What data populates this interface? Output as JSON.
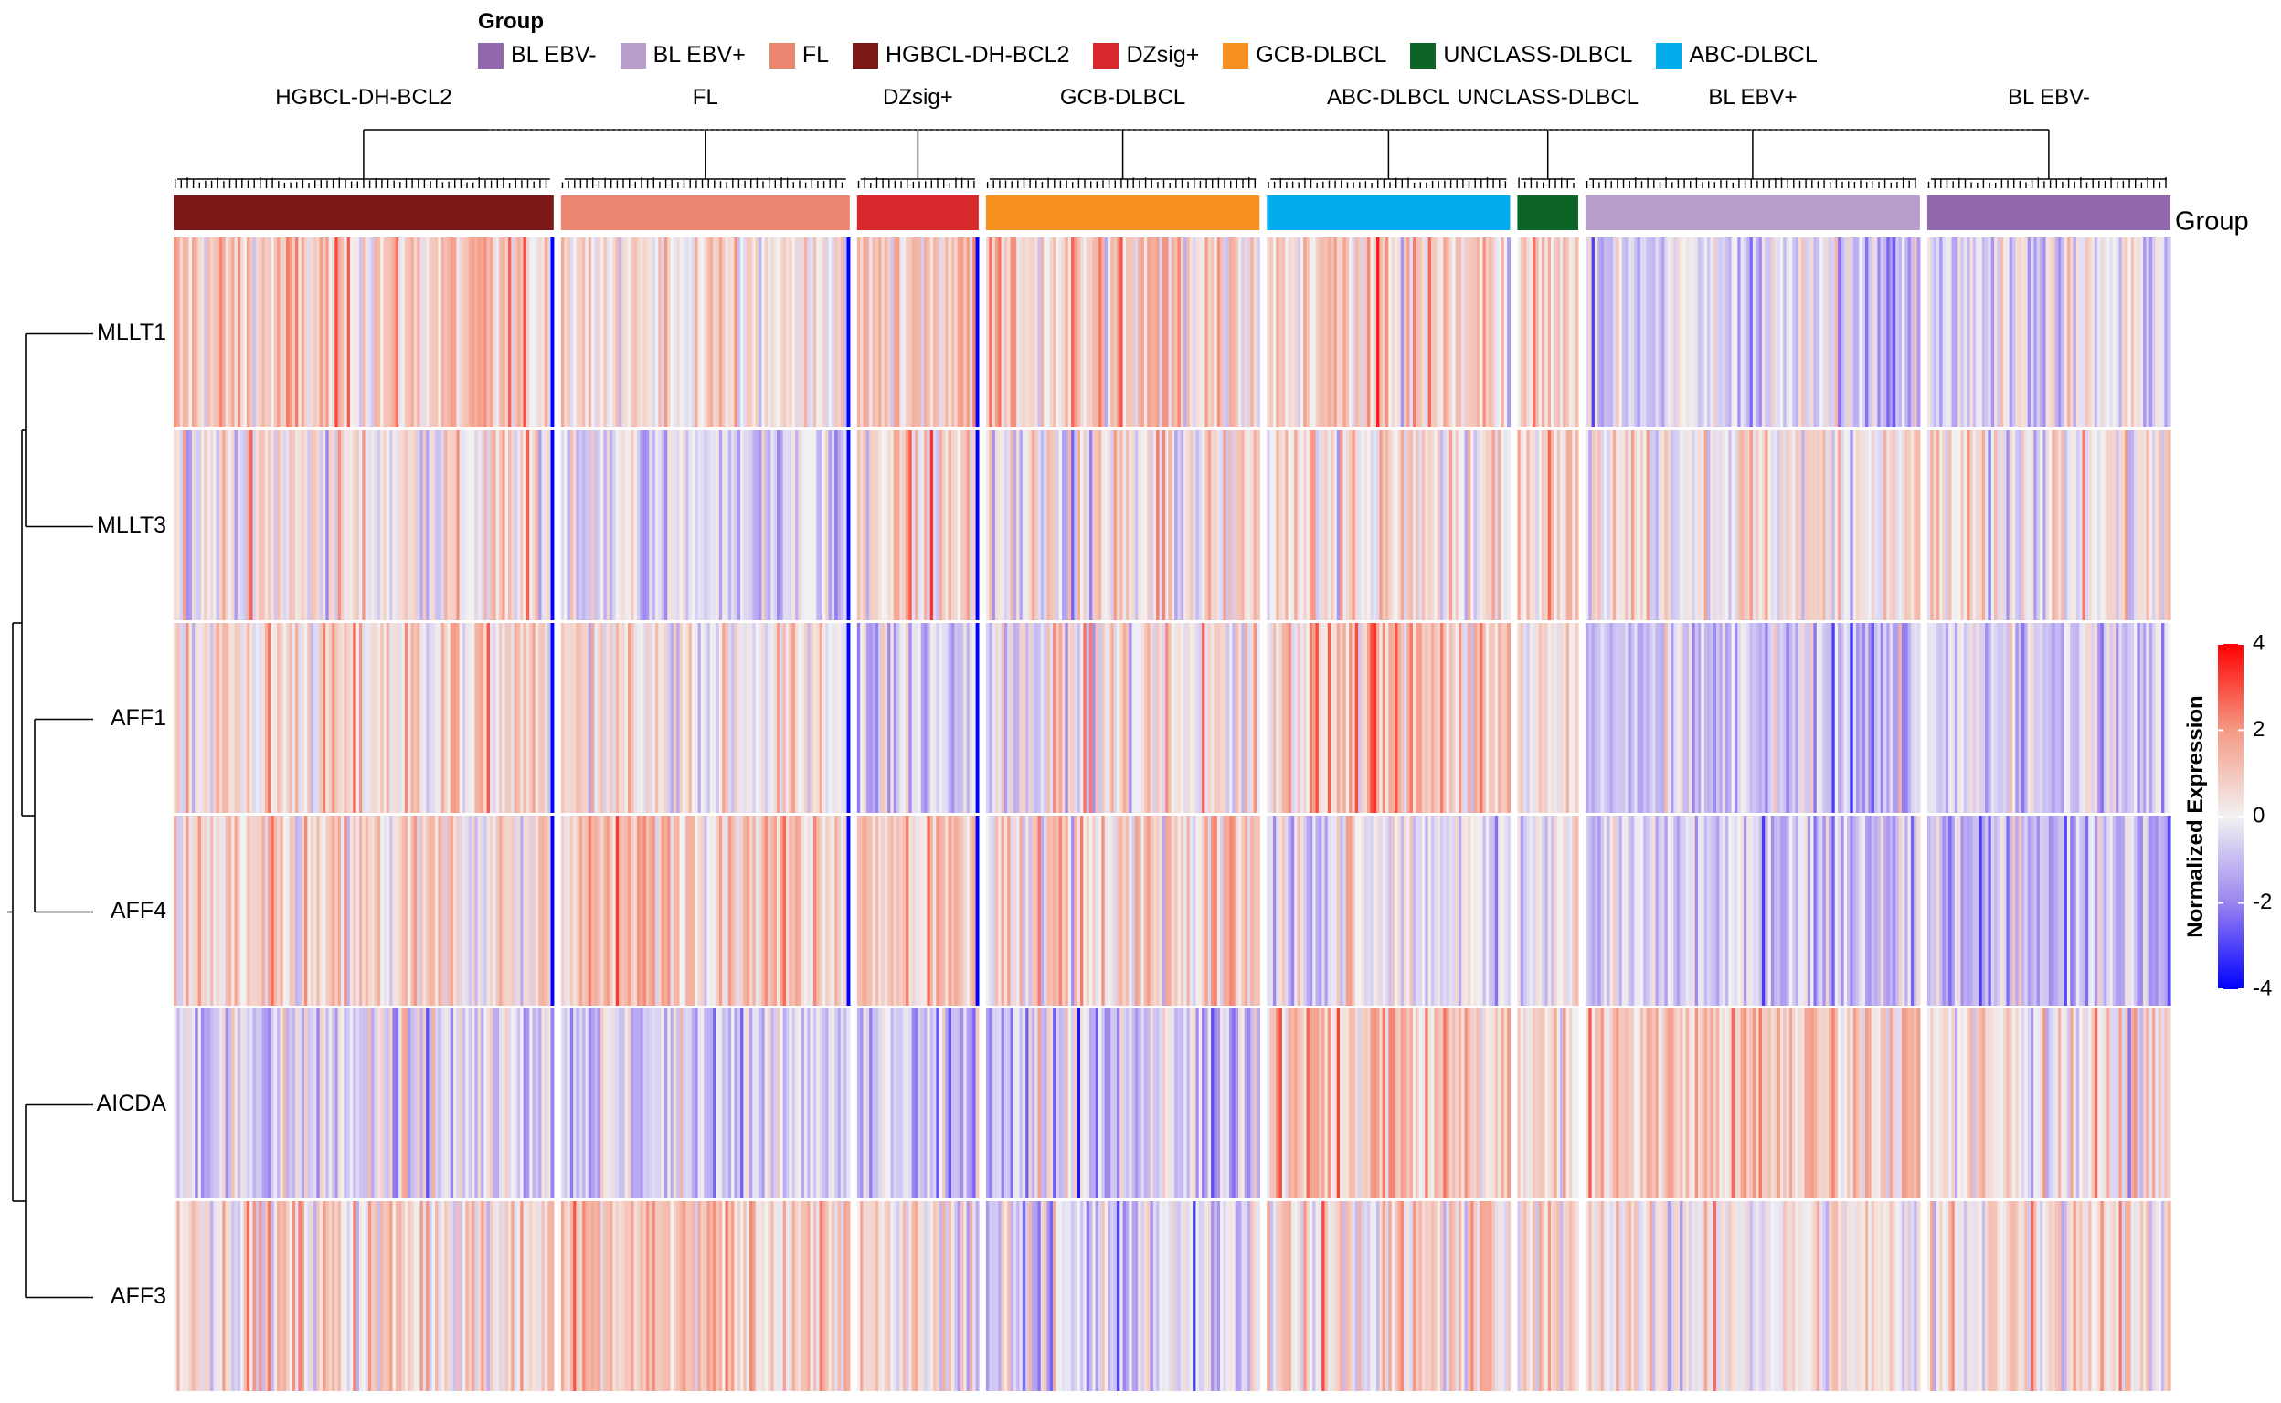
{
  "legend": {
    "title": "Group",
    "items": [
      {
        "label": "BL EBV-",
        "color": "#9168ae"
      },
      {
        "label": "BL EBV+",
        "color": "#b79dcb"
      },
      {
        "label": "FL",
        "color": "#ea8670"
      },
      {
        "label": "HGBCL-DH-BCL2",
        "color": "#7a1818"
      },
      {
        "label": "DZsig+",
        "color": "#d7282c"
      },
      {
        "label": "GCB-DLBCL",
        "color": "#f6901e"
      },
      {
        "label": "UNCLASS-DLBCL",
        "color": "#0c6426"
      },
      {
        "label": "ABC-DLBCL",
        "color": "#03aced"
      }
    ]
  },
  "annotation_label": "Group",
  "chart_data": {
    "type": "heatmap",
    "title": "",
    "colorbar": {
      "title": "Normalized Expression",
      "range": [
        -4,
        4
      ],
      "ticks": [
        4,
        2,
        0,
        -2,
        -4
      ],
      "colors": {
        "low": "#0000ff",
        "mid": "#f2f2f2",
        "high": "#ff0000"
      }
    },
    "rows": [
      "MLLT1",
      "MLLT3",
      "AFF1",
      "AFF4",
      "AICDA",
      "AFF3"
    ],
    "column_groups": [
      {
        "name": "HGBCL-DH-BCL2",
        "color": "#7a1818",
        "n": 125,
        "mean": [
          0.9,
          0.3,
          0.6,
          0.4,
          -0.5,
          0.7
        ],
        "sd": 0.9
      },
      {
        "name": "FL",
        "color": "#ea8670",
        "n": 95,
        "mean": [
          0.4,
          -0.4,
          0.2,
          1.2,
          -0.6,
          0.9
        ],
        "sd": 0.8
      },
      {
        "name": "DZsig+",
        "color": "#d7282c",
        "n": 40,
        "mean": [
          0.8,
          1.0,
          -0.6,
          0.9,
          -0.7,
          0.2
        ],
        "sd": 0.9
      },
      {
        "name": "GCB-DLBCL",
        "color": "#f6901e",
        "n": 90,
        "mean": [
          0.9,
          0.2,
          0.3,
          0.8,
          -0.7,
          -0.6
        ],
        "sd": 1.0
      },
      {
        "name": "ABC-DLBCL",
        "color": "#03aced",
        "n": 80,
        "mean": [
          0.8,
          0.4,
          1.1,
          -0.1,
          1.1,
          0.5
        ],
        "sd": 0.9
      },
      {
        "name": "UNCLASS-DLBCL",
        "color": "#0c6426",
        "n": 20,
        "mean": [
          0.9,
          0.9,
          0.4,
          0.2,
          0.6,
          0.6
        ],
        "sd": 0.9
      },
      {
        "name": "BL EBV+",
        "color": "#b79dcb",
        "n": 110,
        "mean": [
          -0.5,
          0.4,
          -1.0,
          -0.7,
          1.0,
          0.2
        ],
        "sd": 0.8
      },
      {
        "name": "BL EBV-",
        "color": "#9168ae",
        "n": 80,
        "mean": [
          -0.2,
          0.2,
          -0.5,
          -1.0,
          0.3,
          0.4
        ],
        "sd": 0.9
      }
    ]
  }
}
